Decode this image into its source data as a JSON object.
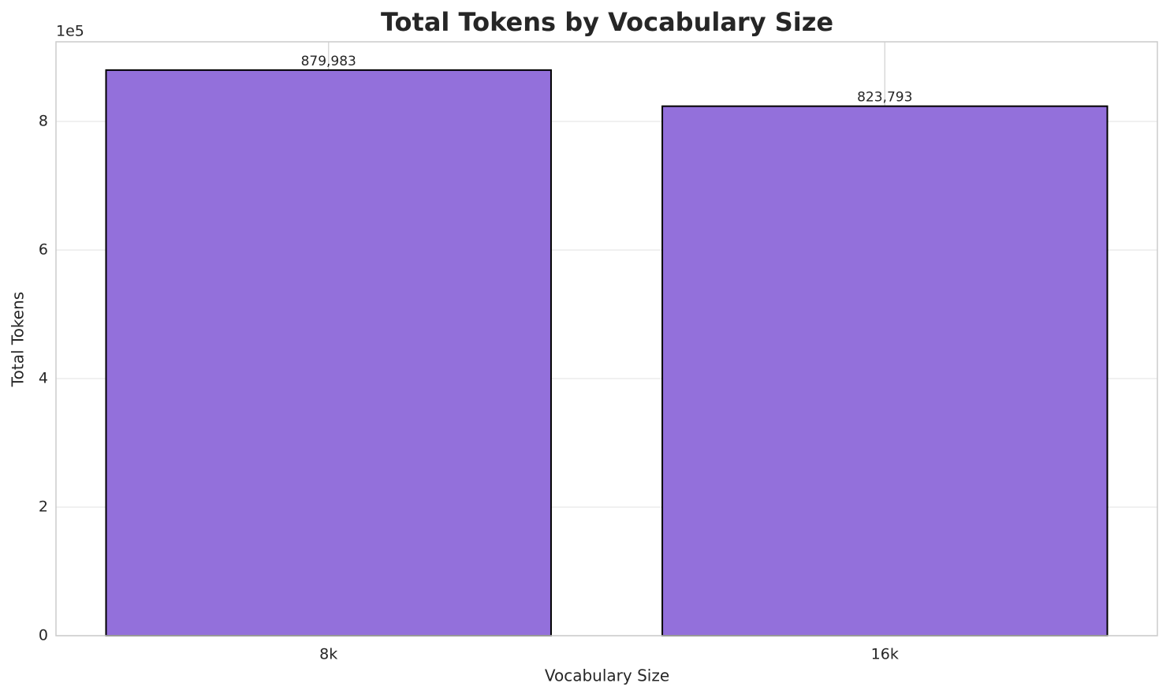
{
  "chart_data": {
    "type": "bar",
    "title": "Total Tokens by Vocabulary Size",
    "x_label": "Vocabulary Size",
    "y_label": "Total Tokens",
    "y_offset_label": "1e5",
    "categories": [
      "8k",
      "16k"
    ],
    "values": [
      879983,
      823793
    ],
    "value_labels": [
      "879,983",
      "823,793"
    ],
    "color": "#9370db",
    "edge_color": "#000000",
    "ylim": [
      0,
      923982
    ],
    "yticks": [
      {
        "value": 0,
        "label": "0"
      },
      {
        "value": 200000,
        "label": "2"
      },
      {
        "value": 400000,
        "label": "4"
      },
      {
        "value": 600000,
        "label": "6"
      },
      {
        "value": 800000,
        "label": "8"
      }
    ],
    "grid": true
  }
}
